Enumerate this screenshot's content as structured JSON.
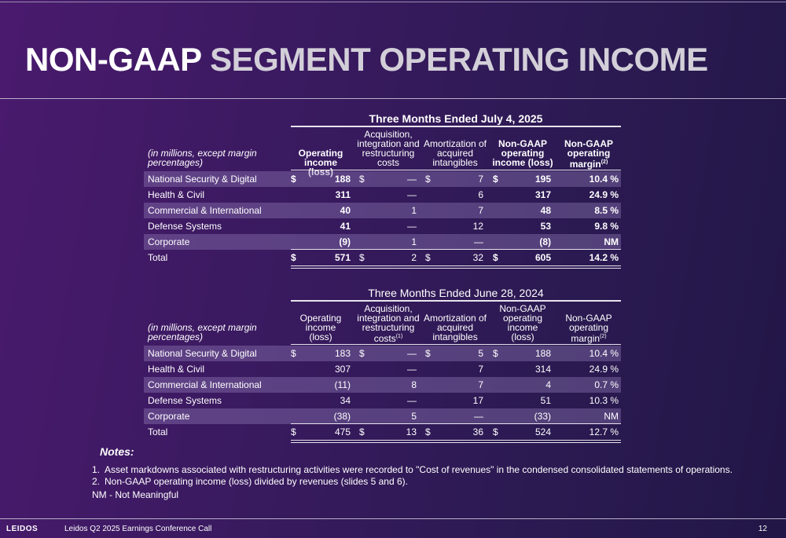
{
  "title": {
    "part1": "NON-GAAP",
    "part2": "SEGMENT OPERATING INCOME"
  },
  "tables": [
    {
      "period": "Three Months Ended July 4, 2025",
      "label_header_1": "(in millions, except margin",
      "label_header_2": "percentages)",
      "headers": [
        [
          "Operating",
          "income (loss)"
        ],
        [
          "Acquisition,",
          "integration and",
          "restructuring",
          "costs"
        ],
        [
          "Amortization of",
          "acquired",
          "intangibles"
        ],
        [
          "Non-GAAP",
          "operating",
          "income (loss)"
        ],
        [
          "Non-GAAP",
          "operating",
          "margin"
        ]
      ],
      "footnote_marks": {
        "h5": "(2)"
      },
      "rows": [
        {
          "label": "National Security & Digital",
          "d1": "$",
          "v1": "188",
          "d2": "$",
          "v2": "—",
          "d3": "$",
          "v3": "7",
          "d4": "$",
          "v4": "195",
          "v5": "10.4 %"
        },
        {
          "label": "Health & Civil",
          "d1": "",
          "v1": "311",
          "d2": "",
          "v2": "—",
          "d3": "",
          "v3": "6",
          "d4": "",
          "v4": "317",
          "v5": "24.9 %"
        },
        {
          "label": "Commercial & International",
          "d1": "",
          "v1": "40",
          "d2": "",
          "v2": "1",
          "d3": "",
          "v3": "7",
          "d4": "",
          "v4": "48",
          "v5": "8.5 %"
        },
        {
          "label": "Defense Systems",
          "d1": "",
          "v1": "41",
          "d2": "",
          "v2": "—",
          "d3": "",
          "v3": "12",
          "d4": "",
          "v4": "53",
          "v5": "9.8 %"
        },
        {
          "label": "Corporate",
          "d1": "",
          "v1": "(9)",
          "d2": "",
          "v2": "1",
          "d3": "",
          "v3": "—",
          "d4": "",
          "v4": "(8)",
          "v5": "NM"
        },
        {
          "label": "Total",
          "d1": "$",
          "v1": "571",
          "d2": "$",
          "v2": "2",
          "d3": "$",
          "v3": "32",
          "d4": "$",
          "v4": "605",
          "v5": "14.2 %"
        }
      ]
    },
    {
      "period": "Three Months Ended June 28, 2024",
      "label_header_1": "(in millions, except margin",
      "label_header_2": "percentages)",
      "headers": [
        [
          "Operating",
          "income",
          "(loss)"
        ],
        [
          "Acquisition,",
          "integration and",
          "restructuring",
          "costs"
        ],
        [
          "Amortization of",
          "acquired",
          "intangibles"
        ],
        [
          "Non-GAAP",
          "operating",
          "income",
          "(loss)"
        ],
        [
          "Non-GAAP",
          "operating",
          "margin"
        ]
      ],
      "footnote_marks": {
        "h2": "(1)",
        "h5": "(2)"
      },
      "rows": [
        {
          "label": "National Security & Digital",
          "d1": "$",
          "v1": "183",
          "d2": "$",
          "v2": "—",
          "d3": "$",
          "v3": "5",
          "d4": "$",
          "v4": "188",
          "v5": "10.4 %"
        },
        {
          "label": "Health & Civil",
          "d1": "",
          "v1": "307",
          "d2": "",
          "v2": "—",
          "d3": "",
          "v3": "7",
          "d4": "",
          "v4": "314",
          "v5": "24.9 %"
        },
        {
          "label": "Commercial & International",
          "d1": "",
          "v1": "(11)",
          "d2": "",
          "v2": "8",
          "d3": "",
          "v3": "7",
          "d4": "",
          "v4": "4",
          "v5": "0.7 %"
        },
        {
          "label": "Defense Systems",
          "d1": "",
          "v1": "34",
          "d2": "",
          "v2": "—",
          "d3": "",
          "v3": "17",
          "d4": "",
          "v4": "51",
          "v5": "10.3 %"
        },
        {
          "label": "Corporate",
          "d1": "",
          "v1": "(38)",
          "d2": "",
          "v2": "5",
          "d3": "",
          "v3": "—",
          "d4": "",
          "v4": "(33)",
          "v5": "NM"
        },
        {
          "label": "Total",
          "d1": "$",
          "v1": "475",
          "d2": "$",
          "v2": "13",
          "d3": "$",
          "v3": "36",
          "d4": "$",
          "v4": "524",
          "v5": "12.7 %"
        }
      ]
    }
  ],
  "notes": {
    "title": "Notes:",
    "items": [
      {
        "num": "1.",
        "text": "Asset markdowns associated with restructuring activities were recorded to \"Cost of revenues\" in the condensed consolidated statements of operations."
      },
      {
        "num": "2.",
        "text": "Non-GAAP operating income (loss) divided by revenues (slides 5 and 6)."
      }
    ],
    "nm": "NM - Not Meaningful"
  },
  "footer": {
    "logo": "LEIDOS",
    "event": "Leidos Q2 2025 Earnings Conference Call",
    "page": "12"
  }
}
